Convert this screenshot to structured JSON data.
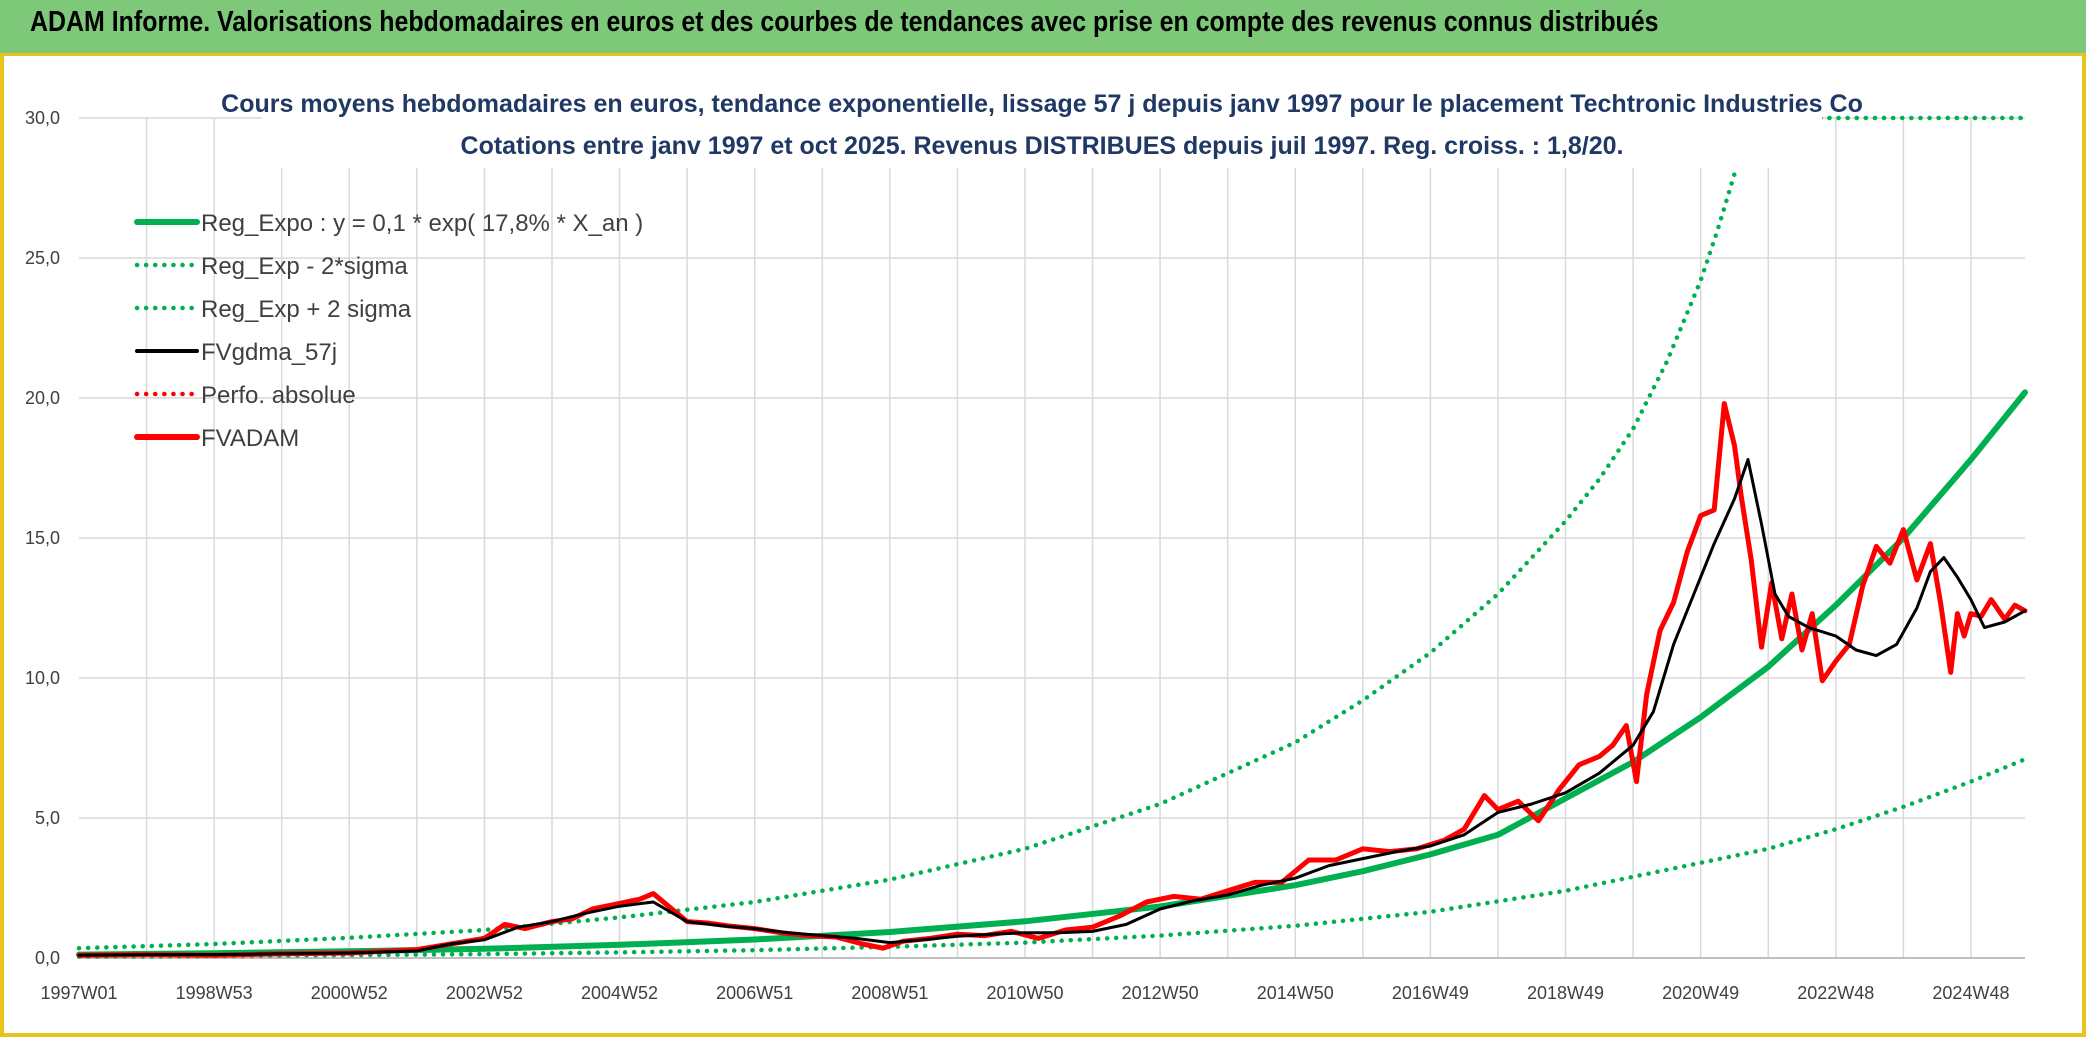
{
  "banner": {
    "title": "ADAM Informe. Valorisations hebdomadaires en euros et des courbes de tendances avec prise en compte des revenus connus distribués"
  },
  "colors": {
    "banner_bg": "#7ec87a",
    "frame": "#e9c21a",
    "regression": "#00b050",
    "fvgdma": "#000000",
    "fvadam": "#ff0000",
    "title_text": "#1f3864",
    "grid": "#d9d9d9"
  },
  "chart_data": {
    "type": "line",
    "title": "Cours moyens hebdomadaires en euros, tendance exponentielle, lissage 57 j depuis janv 1997 pour le placement Techtronic Industries Co",
    "subtitle": "Cotations entre janv 1997 et oct 2025. Revenus DISTRIBUES depuis juil 1997. Reg. croiss. : 1,8/20.",
    "xlabel": "",
    "ylabel": "",
    "ylim": [
      0,
      30
    ],
    "xlim": [
      1997.0,
      2025.8
    ],
    "grid": true,
    "legend_position": "top-left",
    "y_ticks": [
      "0,0",
      "5,0",
      "10,0",
      "15,0",
      "20,0",
      "25,0",
      "30,0"
    ],
    "x_tick_labels": [
      "1997W01",
      "1998W53",
      "2000W52",
      "2002W52",
      "2004W52",
      "2006W51",
      "2008W51",
      "2010W50",
      "2012W50",
      "2014W50",
      "2016W49",
      "2018W49",
      "2020W49",
      "2022W48",
      "2024W48"
    ],
    "x_tick_years": [
      1997.0,
      1999.0,
      2001.0,
      2003.0,
      2005.0,
      2007.0,
      2009.0,
      2011.0,
      2013.0,
      2015.0,
      2017.0,
      2019.0,
      2021.0,
      2023.0,
      2025.0
    ],
    "legend": [
      {
        "label": "Reg_Expo : y = 0,1 * exp( 17,8% *  X_an )",
        "style": "solid-thick",
        "color": "#00b050"
      },
      {
        "label": "Reg_Exp - 2*sigma",
        "style": "dotted",
        "color": "#00b050"
      },
      {
        "label": "Reg_Exp + 2 sigma",
        "style": "dotted",
        "color": "#00b050"
      },
      {
        "label": "FVgdma_57j",
        "style": "solid",
        "color": "#000000"
      },
      {
        "label": "Perfo. absolue",
        "style": "dotted",
        "color": "#ff0000"
      },
      {
        "label": "FVADAM",
        "style": "solid-thick",
        "color": "#ff0000"
      }
    ],
    "series": [
      {
        "name": "Reg_Expo : y = 0,1 * exp( 17,8% *  X_an )",
        "x": [
          1997.0,
          1999.0,
          2001.0,
          2003.0,
          2005.0,
          2007.0,
          2009.0,
          2011.0,
          2013.0,
          2015.0,
          2016.0,
          2017.0,
          2018.0,
          2019.0,
          2020.0,
          2021.0,
          2022.0,
          2023.0,
          2024.0,
          2025.0,
          2025.8
        ],
        "y": [
          0.12,
          0.17,
          0.24,
          0.33,
          0.47,
          0.66,
          0.93,
          1.31,
          1.84,
          2.6,
          3.1,
          3.7,
          4.4,
          5.7,
          7.0,
          8.6,
          10.4,
          12.6,
          15.0,
          17.8,
          20.2
        ]
      },
      {
        "name": "Reg_Exp - 2*sigma",
        "x": [
          1997.0,
          1999.0,
          2001.0,
          2003.0,
          2005.0,
          2007.0,
          2009.0,
          2011.0,
          2013.0,
          2015.0,
          2017.0,
          2019.0,
          2021.0,
          2022.0,
          2023.0,
          2024.0,
          2025.0,
          2025.8
        ],
        "y": [
          0.05,
          0.07,
          0.1,
          0.14,
          0.2,
          0.28,
          0.4,
          0.55,
          0.8,
          1.15,
          1.65,
          2.4,
          3.4,
          3.9,
          4.6,
          5.4,
          6.3,
          7.1
        ]
      },
      {
        "name": "Reg_Exp + 2 sigma",
        "x": [
          1997.0,
          1999.0,
          2001.0,
          2003.0,
          2005.0,
          2007.0,
          2009.0,
          2011.0,
          2013.0,
          2015.0,
          2016.0,
          2017.0,
          2018.0,
          2019.0,
          2019.5,
          2020.0,
          2020.5,
          2021.0,
          2021.25,
          2021.5
        ],
        "y": [
          0.35,
          0.5,
          0.72,
          1.0,
          1.45,
          2.0,
          2.8,
          3.9,
          5.5,
          7.7,
          9.2,
          10.9,
          13.0,
          15.6,
          17.1,
          18.9,
          21.3,
          24.2,
          26.0,
          28.0
        ]
      },
      {
        "name": "Reg_Exp + 2 sigma (cap)",
        "x": [
          2019.0,
          2025.8
        ],
        "y": [
          30.0,
          30.0
        ]
      },
      {
        "name": "FVgdma_57j",
        "x": [
          1997.0,
          1998.0,
          1999.0,
          2000.0,
          2001.0,
          2002.0,
          2002.5,
          2003.0,
          2003.5,
          2004.0,
          2004.5,
          2005.0,
          2005.5,
          2006.0,
          2006.5,
          2007.0,
          2007.5,
          2008.0,
          2008.5,
          2009.0,
          2009.5,
          2010.0,
          2010.5,
          2011.0,
          2011.5,
          2012.0,
          2012.5,
          2013.0,
          2013.5,
          2014.0,
          2014.5,
          2015.0,
          2015.5,
          2016.0,
          2016.5,
          2017.0,
          2017.5,
          2018.0,
          2018.5,
          2019.0,
          2019.5,
          2020.0,
          2020.3,
          2020.6,
          2020.9,
          2021.2,
          2021.5,
          2021.7,
          2021.9,
          2022.1,
          2022.3,
          2022.6,
          2023.0,
          2023.3,
          2023.6,
          2023.9,
          2024.2,
          2024.4,
          2024.6,
          2024.8,
          2025.0,
          2025.2,
          2025.5,
          2025.8
        ],
        "y": [
          0.1,
          0.12,
          0.12,
          0.15,
          0.18,
          0.25,
          0.5,
          0.65,
          1.1,
          1.3,
          1.6,
          1.85,
          2.0,
          1.3,
          1.15,
          1.05,
          0.9,
          0.8,
          0.7,
          0.55,
          0.65,
          0.78,
          0.85,
          0.9,
          0.9,
          0.95,
          1.2,
          1.75,
          2.05,
          2.25,
          2.6,
          2.85,
          3.3,
          3.55,
          3.8,
          4.0,
          4.4,
          5.2,
          5.5,
          5.9,
          6.6,
          7.6,
          8.8,
          11.2,
          13.0,
          14.8,
          16.4,
          17.8,
          15.5,
          13.0,
          12.2,
          11.8,
          11.5,
          11.0,
          10.8,
          11.2,
          12.5,
          13.8,
          14.3,
          13.6,
          12.8,
          11.8,
          12.0,
          12.4
        ]
      },
      {
        "name": "FVADAM",
        "x": [
          1997.0,
          1998.0,
          1999.0,
          2000.0,
          2001.0,
          2002.0,
          2002.5,
          2003.0,
          2003.3,
          2003.6,
          2004.0,
          2004.3,
          2004.6,
          2005.0,
          2005.3,
          2005.5,
          2005.8,
          2006.0,
          2006.3,
          2006.6,
          2007.0,
          2007.4,
          2007.8,
          2008.2,
          2008.6,
          2008.9,
          2009.2,
          2009.6,
          2010.0,
          2010.4,
          2010.8,
          2011.2,
          2011.6,
          2012.0,
          2012.4,
          2012.8,
          2013.2,
          2013.6,
          2014.0,
          2014.4,
          2014.8,
          2015.2,
          2015.6,
          2016.0,
          2016.4,
          2016.8,
          2017.2,
          2017.5,
          2017.8,
          2018.0,
          2018.3,
          2018.6,
          2018.9,
          2019.2,
          2019.5,
          2019.7,
          2019.9,
          2020.05,
          2020.2,
          2020.4,
          2020.6,
          2020.8,
          2021.0,
          2021.2,
          2021.35,
          2021.5,
          2021.6,
          2021.75,
          2021.9,
          2022.05,
          2022.2,
          2022.35,
          2022.5,
          2022.65,
          2022.8,
          2023.0,
          2023.2,
          2023.4,
          2023.6,
          2023.8,
          2024.0,
          2024.2,
          2024.4,
          2024.55,
          2024.7,
          2024.8,
          2024.9,
          2025.0,
          2025.15,
          2025.3,
          2025.5,
          2025.65,
          2025.8
        ],
        "y": [
          0.1,
          0.12,
          0.1,
          0.15,
          0.18,
          0.3,
          0.5,
          0.7,
          1.2,
          1.05,
          1.3,
          1.4,
          1.75,
          1.95,
          2.1,
          2.3,
          1.7,
          1.3,
          1.25,
          1.15,
          1.05,
          0.9,
          0.8,
          0.75,
          0.5,
          0.35,
          0.6,
          0.7,
          0.85,
          0.8,
          0.95,
          0.7,
          1.0,
          1.1,
          1.5,
          2.0,
          2.2,
          2.1,
          2.4,
          2.7,
          2.7,
          3.5,
          3.5,
          3.9,
          3.8,
          3.9,
          4.2,
          4.6,
          5.8,
          5.3,
          5.6,
          4.9,
          6.0,
          6.9,
          7.2,
          7.6,
          8.3,
          6.3,
          9.4,
          11.7,
          12.7,
          14.5,
          15.8,
          16.0,
          19.8,
          18.3,
          16.5,
          14.2,
          11.1,
          13.4,
          11.4,
          13.0,
          11.0,
          12.3,
          9.9,
          10.6,
          11.2,
          13.3,
          14.7,
          14.1,
          15.3,
          13.5,
          14.8,
          12.7,
          10.2,
          12.3,
          11.5,
          12.3,
          12.2,
          12.8,
          12.1,
          12.6,
          12.4
        ]
      }
    ]
  }
}
